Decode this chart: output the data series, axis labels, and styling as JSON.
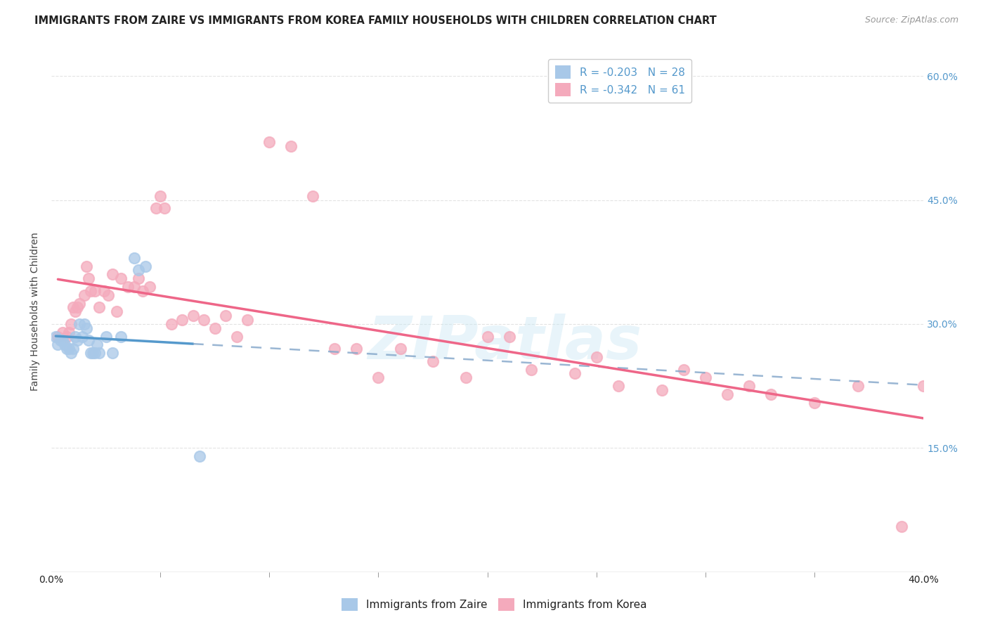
{
  "title": "IMMIGRANTS FROM ZAIRE VS IMMIGRANTS FROM KOREA FAMILY HOUSEHOLDS WITH CHILDREN CORRELATION CHART",
  "source": "Source: ZipAtlas.com",
  "ylabel": "Family Households with Children",
  "background_color": "#ffffff",
  "grid_color": "#dddddd",
  "watermark_text": "ZIPatlas",
  "zaire_R": -0.203,
  "zaire_N": 28,
  "korea_R": -0.342,
  "korea_N": 61,
  "zaire_scatter_color": "#a8c8e8",
  "korea_scatter_color": "#f4aabc",
  "zaire_line_color": "#5599cc",
  "korea_line_color": "#ee6688",
  "zaire_dash_color": "#88aacc",
  "zaire_x": [
    0.002,
    0.003,
    0.004,
    0.005,
    0.006,
    0.007,
    0.008,
    0.009,
    0.01,
    0.011,
    0.012,
    0.013,
    0.014,
    0.015,
    0.016,
    0.017,
    0.018,
    0.019,
    0.02,
    0.021,
    0.022,
    0.025,
    0.028,
    0.032,
    0.038,
    0.04,
    0.043,
    0.068
  ],
  "zaire_y": [
    0.285,
    0.275,
    0.28,
    0.28,
    0.275,
    0.27,
    0.27,
    0.265,
    0.27,
    0.285,
    0.28,
    0.3,
    0.285,
    0.3,
    0.295,
    0.28,
    0.265,
    0.265,
    0.265,
    0.275,
    0.265,
    0.285,
    0.265,
    0.285,
    0.38,
    0.365,
    0.37,
    0.14
  ],
  "korea_x": [
    0.003,
    0.005,
    0.007,
    0.008,
    0.009,
    0.01,
    0.011,
    0.012,
    0.013,
    0.015,
    0.016,
    0.017,
    0.018,
    0.02,
    0.022,
    0.024,
    0.026,
    0.028,
    0.03,
    0.032,
    0.035,
    0.038,
    0.04,
    0.042,
    0.045,
    0.048,
    0.05,
    0.052,
    0.055,
    0.06,
    0.065,
    0.07,
    0.075,
    0.08,
    0.085,
    0.09,
    0.1,
    0.11,
    0.12,
    0.13,
    0.14,
    0.15,
    0.16,
    0.175,
    0.19,
    0.2,
    0.21,
    0.22,
    0.24,
    0.25,
    0.26,
    0.28,
    0.29,
    0.3,
    0.31,
    0.32,
    0.33,
    0.35,
    0.37,
    0.39,
    0.4
  ],
  "korea_y": [
    0.285,
    0.29,
    0.285,
    0.29,
    0.3,
    0.32,
    0.315,
    0.32,
    0.325,
    0.335,
    0.37,
    0.355,
    0.34,
    0.34,
    0.32,
    0.34,
    0.335,
    0.36,
    0.315,
    0.355,
    0.345,
    0.345,
    0.355,
    0.34,
    0.345,
    0.44,
    0.455,
    0.44,
    0.3,
    0.305,
    0.31,
    0.305,
    0.295,
    0.31,
    0.285,
    0.305,
    0.52,
    0.515,
    0.455,
    0.27,
    0.27,
    0.235,
    0.27,
    0.255,
    0.235,
    0.285,
    0.285,
    0.245,
    0.24,
    0.26,
    0.225,
    0.22,
    0.245,
    0.235,
    0.215,
    0.225,
    0.215,
    0.205,
    0.225,
    0.055,
    0.225
  ],
  "xlim": [
    0.0,
    0.4
  ],
  "ylim": [
    0.0,
    0.63
  ],
  "x_minor_ticks": [
    0.05,
    0.1,
    0.15,
    0.2,
    0.25,
    0.3,
    0.35
  ],
  "title_fontsize": 10.5,
  "source_fontsize": 9,
  "tick_fontsize": 10,
  "ylabel_fontsize": 10,
  "legend_fontsize": 11
}
